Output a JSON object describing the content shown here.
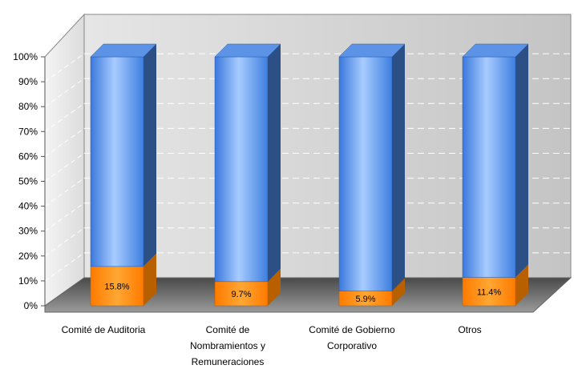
{
  "chart_data": {
    "type": "bar",
    "stacked": "100%",
    "three_d": true,
    "categories": [
      [
        "Comité de Auditoria"
      ],
      [
        "Comité de",
        "Nombramientos y",
        "Remuneraciones"
      ],
      [
        "Comité de Gobierno",
        "Corporativo"
      ],
      [
        "Otros"
      ]
    ],
    "series": [
      {
        "values": [
          15.8,
          9.7,
          5.9,
          11.4
        ],
        "color": "#ff8c00"
      },
      {
        "values": [
          84.2,
          90.3,
          94.1,
          88.6
        ],
        "color": "#4f8fe8"
      }
    ],
    "data_labels": [
      "15.8%",
      "9.7%",
      "5.9%",
      "11.4%"
    ],
    "yticks": [
      "0%",
      "10%",
      "20%",
      "30%",
      "40%",
      "50%",
      "60%",
      "70%",
      "80%",
      "90%",
      "100%"
    ],
    "ylim": [
      0,
      100
    ],
    "grid": true,
    "legend": "none"
  }
}
